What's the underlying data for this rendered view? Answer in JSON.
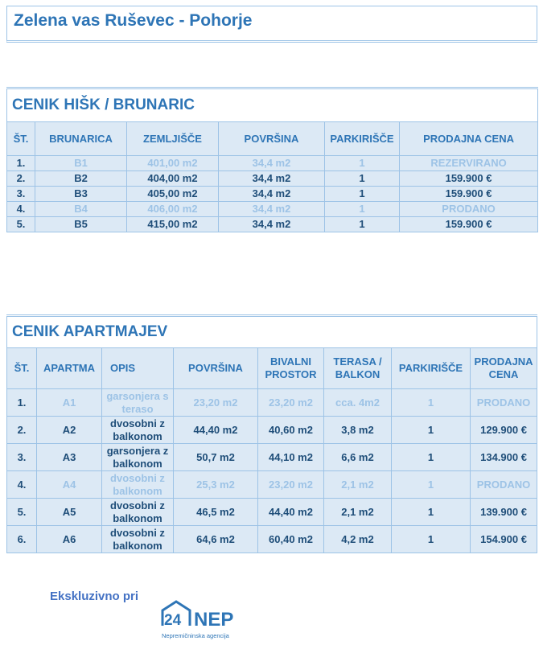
{
  "title": "Zelena vas Ruševec - Pohorje",
  "houses": {
    "caption": "CENIK HIŠK / BRUNARIC",
    "headers": [
      "ŠT.",
      "BRUNARICA",
      "ZEMLJIŠČE",
      "POVRŠINA",
      "PARKIRIŠČE",
      "PRODAJNA CENA"
    ],
    "rows": [
      {
        "cells": [
          "1.",
          "B1",
          "401,00 m2",
          "34,4 m2",
          "1",
          "REZERVIRANO"
        ],
        "available": false
      },
      {
        "cells": [
          "2.",
          "B2",
          "404,00 m2",
          "34,4 m2",
          "1",
          "159.900 €"
        ],
        "available": true
      },
      {
        "cells": [
          "3.",
          "B3",
          "405,00 m2",
          "34,4 m2",
          "1",
          "159.900 €"
        ],
        "available": true
      },
      {
        "cells": [
          "4.",
          "B4",
          "406,00 m2",
          "34,4 m2",
          "1",
          "PRODANO"
        ],
        "available": false
      },
      {
        "cells": [
          "5.",
          "B5",
          "415,00 m2",
          "34,4 m2",
          "1",
          "159.900 €"
        ],
        "available": true
      }
    ]
  },
  "apartments": {
    "caption": "CENIK APARTMAJEV",
    "headers": [
      "ŠT.",
      "APARTMA",
      "OPIS",
      "POVRŠINA",
      "BIVALNI PROSTOR",
      "TERASA / BALKON",
      "PARKIRIŠČE",
      "PRODAJNA CENA"
    ],
    "rows": [
      {
        "cells": [
          "1.",
          "A1",
          "garsonjera s teraso",
          "23,20 m2",
          "23,20 m2",
          "cca. 4m2",
          "1",
          "PRODANO"
        ],
        "available": false
      },
      {
        "cells": [
          "2.",
          "A2",
          "dvosobni z balkonom",
          "44,40 m2",
          "40,60 m2",
          "3,8 m2",
          "1",
          "129.900 €"
        ],
        "available": true
      },
      {
        "cells": [
          "3.",
          "A3",
          "garsonjera z balkonom",
          "50,7 m2",
          "44,10 m2",
          "6,6 m2",
          "1",
          "134.900 €"
        ],
        "available": true
      },
      {
        "cells": [
          "4.",
          "A4",
          "dvosobni z balkonom",
          "25,3 m2",
          "23,20 m2",
          "2,1 m2",
          "1",
          "PRODANO"
        ],
        "available": false
      },
      {
        "cells": [
          "5.",
          "A5",
          "dvosobni z balkonom",
          "46,5 m2",
          "44,40 m2",
          "2,1 m2",
          "1",
          "139.900 €"
        ],
        "available": true
      },
      {
        "cells": [
          "6.",
          "A6",
          "dvosobni z balkonom",
          "64,6 m2",
          "60,40 m2",
          "4,2 m2",
          "1",
          "154.900 €"
        ],
        "available": true
      }
    ]
  },
  "footer": {
    "exclusive": "Ekskluzivno pri",
    "logo_text": "24NEP",
    "logo_sub": "Nepremičninska agencija"
  },
  "colors": {
    "accent": "#2e75b6",
    "text": "#1f4e79",
    "muted": "#9dc3e6",
    "cell": "#dce9f5"
  }
}
